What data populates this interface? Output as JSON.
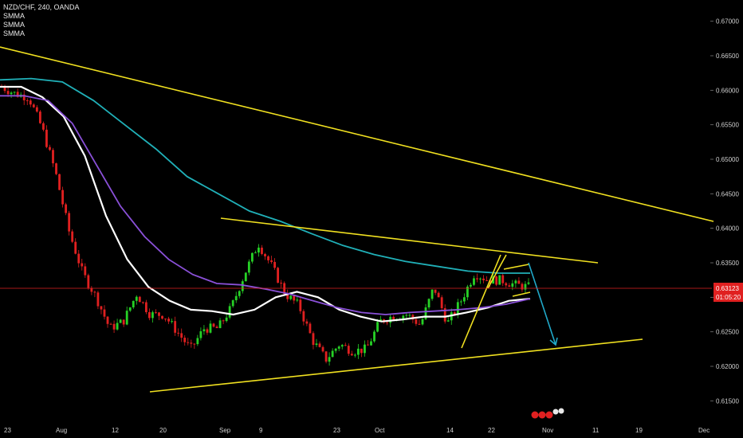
{
  "header": {
    "symbol_line": "NZD/CHF, 240, OANDA",
    "indicators": [
      "SMMA",
      "SMMA",
      "SMMA"
    ]
  },
  "price_axis": {
    "ticks": [
      "0.67000",
      "0.66500",
      "0.66000",
      "0.65500",
      "0.65000",
      "0.64500",
      "0.64000",
      "0.63500",
      "0.63000",
      "0.62500",
      "0.62000",
      "0.61500"
    ],
    "current_price": "0.63123",
    "countdown": "01:05:20"
  },
  "time_axis": {
    "ticks": [
      "23",
      "Aug",
      "12",
      "20",
      "Sep",
      "9",
      "23",
      "Oct",
      "14",
      "22",
      "Nov",
      "11",
      "19",
      "Dec"
    ]
  },
  "colors": {
    "background": "#000000",
    "bull_candle": "#26d126",
    "bear_candle": "#e02020",
    "trendline": "#f0e020",
    "smma_fast": "#ffffff",
    "smma_mid": "#8a50d8",
    "smma_slow": "#20b0b8",
    "arrow": "#20a8c8",
    "price_line": "#e02020"
  },
  "chart_data": {
    "type": "candlestick",
    "title": "NZD/CHF, 240, OANDA",
    "ylim": [
      0.6125,
      0.6725
    ],
    "x_ticks": [
      "23",
      "Aug",
      "12",
      "20",
      "Sep",
      "9",
      "23",
      "Oct",
      "14",
      "22",
      "Nov",
      "11",
      "19",
      "Dec"
    ],
    "grid": false,
    "close_path": [
      0.6605,
      0.6595,
      0.659,
      0.6545,
      0.648,
      0.6395,
      0.6335,
      0.63,
      0.6255,
      0.6265,
      0.6305,
      0.6275,
      0.6275,
      0.625,
      0.6225,
      0.6255,
      0.6255,
      0.6285,
      0.6335,
      0.6378,
      0.6345,
      0.6305,
      0.6288,
      0.6238,
      0.621,
      0.6232,
      0.6222,
      0.6225,
      0.6265,
      0.6273,
      0.6275,
      0.626,
      0.6315,
      0.6262,
      0.6295,
      0.6335,
      0.6325,
      0.6325,
      0.6318,
      0.6315
    ],
    "current_price": 0.63123,
    "series": [
      {
        "name": "SMMA",
        "color": "#ffffff",
        "values": [
          0.6605,
          0.6605,
          0.659,
          0.6562,
          0.6505,
          0.6418,
          0.6355,
          0.6315,
          0.6295,
          0.6282,
          0.628,
          0.6275,
          0.6282,
          0.63,
          0.6308,
          0.63,
          0.6282,
          0.6272,
          0.6265,
          0.6268,
          0.6272,
          0.6272,
          0.6278,
          0.6285,
          0.6295,
          0.6298
        ]
      },
      {
        "name": "SMMA",
        "color": "#8a50d8",
        "values": [
          0.6592,
          0.6592,
          0.6585,
          0.6552,
          0.6492,
          0.6432,
          0.6388,
          0.6355,
          0.6333,
          0.632,
          0.6318,
          0.6312,
          0.6305,
          0.6295,
          0.6285,
          0.6278,
          0.6275,
          0.6278,
          0.628,
          0.6282,
          0.6285,
          0.629,
          0.6298
        ]
      },
      {
        "name": "SMMA",
        "color": "#20b0b8",
        "values": [
          0.6615,
          0.6617,
          0.6612,
          0.6585,
          0.655,
          0.6515,
          0.6475,
          0.645,
          0.6425,
          0.641,
          0.6392,
          0.6375,
          0.6362,
          0.6352,
          0.6345,
          0.6338,
          0.6335,
          0.6335
        ]
      }
    ]
  }
}
